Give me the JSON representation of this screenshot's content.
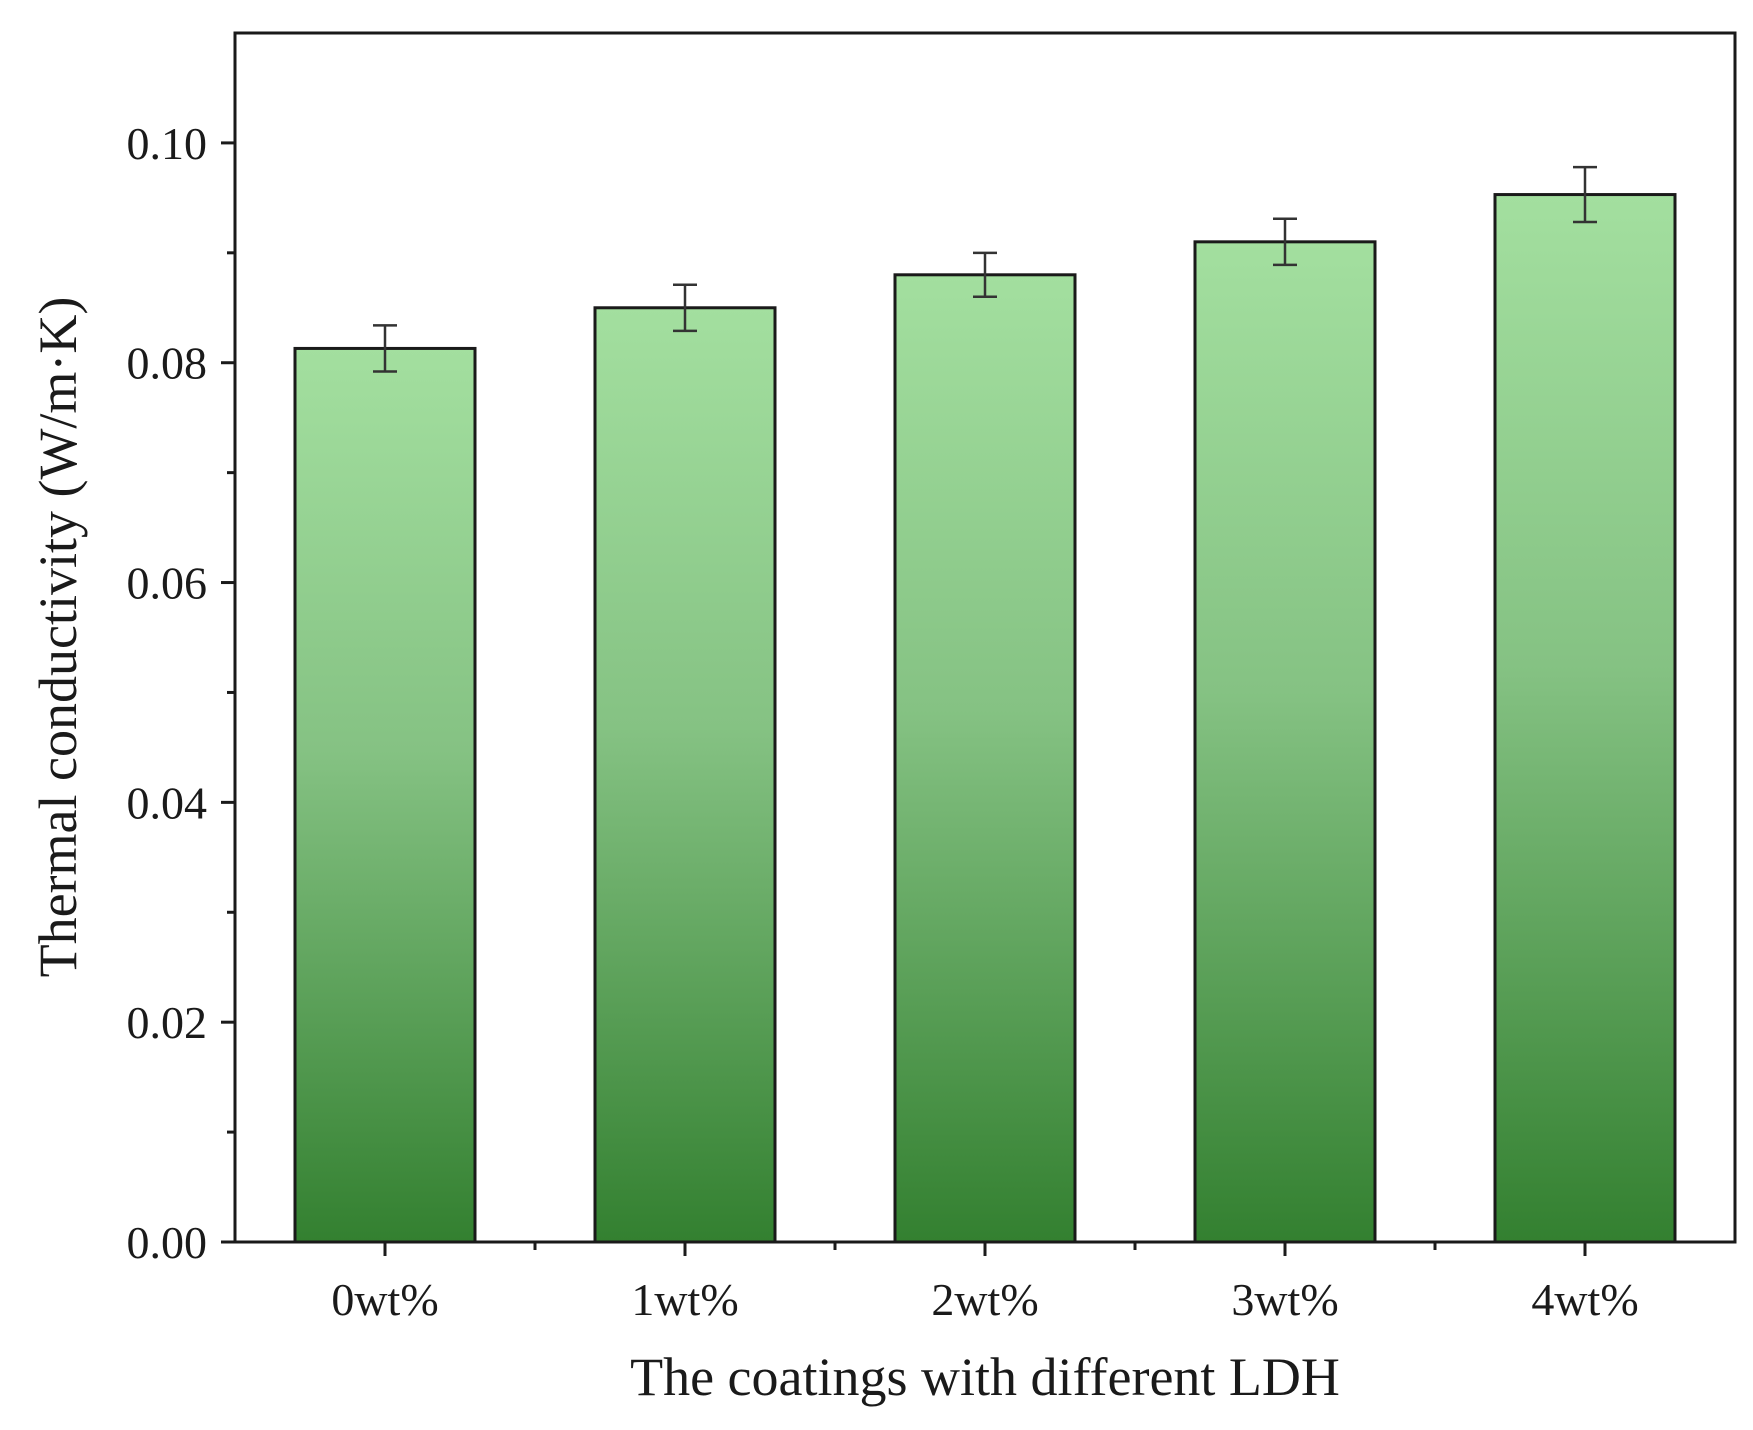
{
  "chart_data": {
    "type": "bar",
    "title": "",
    "xlabel": "The coatings with different LDH",
    "ylabel": "Thermal conductivity (W/m·K)",
    "categories": [
      "0wt%",
      "1wt%",
      "2wt%",
      "3wt%",
      "4wt%"
    ],
    "values": [
      0.0813,
      0.085,
      0.088,
      0.091,
      0.0953
    ],
    "errors": [
      0.0021,
      0.0021,
      0.002,
      0.0021,
      0.0025
    ],
    "ylim": [
      0,
      0.11
    ],
    "yticks": [
      "0.00",
      "0.02",
      "0.04",
      "0.06",
      "0.08",
      "0.10"
    ],
    "grid": false,
    "colors": {
      "bar_top": "#a3df9f",
      "bar_bottom": "#338030",
      "axis": "#1a1a1a"
    }
  }
}
